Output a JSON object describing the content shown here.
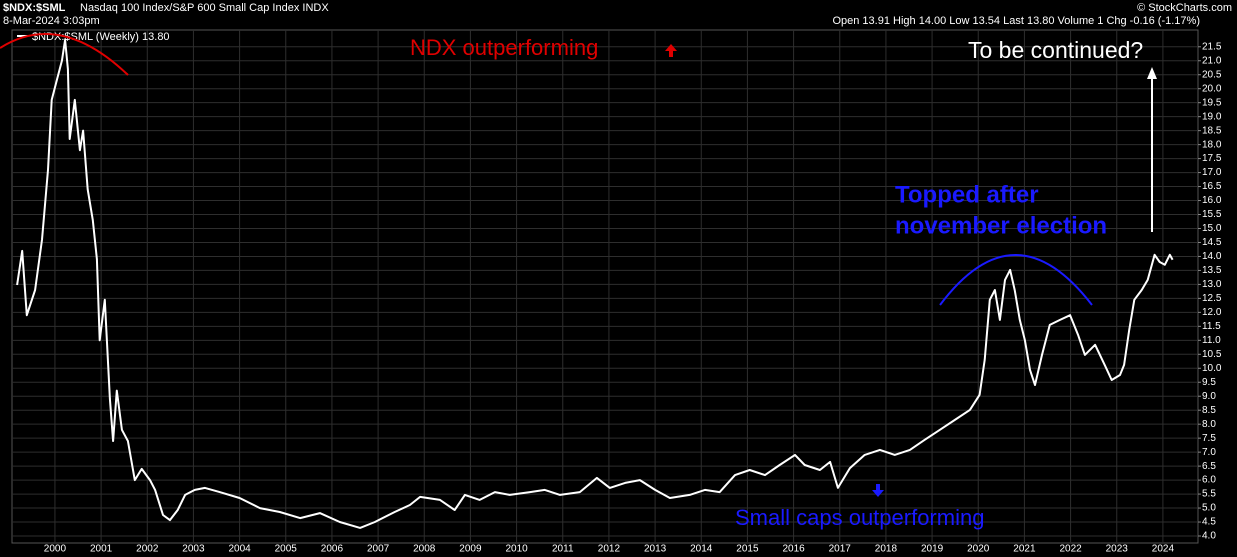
{
  "chart_data": {
    "type": "line",
    "title": "$NDX:$SML",
    "subtitle": "Nasdaq 100 Index/S&P 600 Small Cap Index INDX",
    "date": "8-Mar-2024 3:03pm",
    "quote": "Open 13.91  High 14.00  Low 13.54  Last 13.80  Volume 1  Chg -0.16 (-1.17%)",
    "source": "© StockCharts.com",
    "annotations": [
      {
        "text": "NDX outperforming",
        "color": "#e00000"
      },
      {
        "text": "Small caps outperforming",
        "color": "#1a1aff"
      },
      {
        "text": "Topped after",
        "color": "#1a1aff"
      },
      {
        "text": "november election",
        "color": "#1a1aff"
      },
      {
        "text": "To be continued?",
        "color": "#ffffff"
      }
    ],
    "xlim": [
      1999.07,
      2024.76
    ],
    "xticks": [
      2000,
      2001,
      2002,
      2003,
      2004,
      2005,
      2006,
      2007,
      2008,
      2009,
      2010,
      2011,
      2012,
      2013,
      2014,
      2015,
      2016,
      2017,
      2018,
      2019,
      2020,
      2021,
      2022,
      2023,
      2024
    ],
    "ylim": [
      3.75,
      22.1
    ],
    "yticks": [
      {
        "value": 4,
        "label": "4.0"
      },
      4.5,
      {
        "value": 5,
        "label": "5.0"
      },
      5.5,
      {
        "value": 6,
        "label": "6.0"
      },
      6.5,
      {
        "value": 7,
        "label": "7.0"
      },
      7.5,
      {
        "value": 8,
        "label": "8.0"
      },
      8.5,
      {
        "value": 9,
        "label": "9.0"
      },
      9.5,
      {
        "value": 10,
        "label": "10.0"
      },
      10.5,
      {
        "value": 11,
        "label": "11.0"
      },
      11.5,
      {
        "value": 12,
        "label": "12.0"
      },
      12.5,
      {
        "value": 13,
        "label": "13.0"
      },
      13.5,
      {
        "value": 14,
        "label": "14.0"
      },
      14.5,
      {
        "value": 15,
        "label": "15.0"
      },
      15.5,
      {
        "value": 16,
        "label": "16.0"
      },
      16.5,
      {
        "value": 17,
        "label": "17.0"
      },
      17.5,
      {
        "value": 18,
        "label": "18.0"
      },
      18.5,
      {
        "value": 19,
        "label": "19.0"
      },
      19.5,
      {
        "value": 20,
        "label": "20.0"
      },
      20.5,
      {
        "value": 21,
        "label": "21.0"
      },
      21.5
    ],
    "grid": true,
    "series": [
      {
        "name": "$NDX:$SML (Weekly) 13.80",
        "color": "#ffffff",
        "x": [
          1999.18,
          1999.29,
          1999.39,
          1999.57,
          1999.72,
          1999.85,
          1999.93,
          2000.04,
          2000.15,
          2000.22,
          2000.28,
          2000.32,
          2000.43,
          2000.54,
          2000.61,
          2000.71,
          2000.82,
          2000.91,
          2000.97,
          2001.08,
          2001.19,
          2001.26,
          2001.34,
          2001.45,
          2001.58,
          2001.73,
          2001.88,
          2002.06,
          2002.17,
          2002.34,
          2002.49,
          2002.66,
          2002.82,
          2003.03,
          2003.25,
          2003.57,
          2004.0,
          2004.44,
          2004.87,
          2005.31,
          2005.74,
          2006.17,
          2006.61,
          2006.93,
          2007.36,
          2007.69,
          2007.91,
          2008.34,
          2008.66,
          2008.88,
          2009.2,
          2009.53,
          2009.85,
          2010.29,
          2010.61,
          2010.94,
          2011.37,
          2011.74,
          2012.02,
          2012.35,
          2012.67,
          2013.0,
          2013.32,
          2013.75,
          2014.08,
          2014.4,
          2014.73,
          2015.05,
          2015.38,
          2015.7,
          2016.03,
          2016.24,
          2016.57,
          2016.79,
          2016.96,
          2017.22,
          2017.54,
          2017.87,
          2018.19,
          2018.52,
          2018.84,
          2019.17,
          2019.49,
          2019.82,
          2020.03,
          2020.14,
          2020.25,
          2020.36,
          2020.47,
          2020.58,
          2020.69,
          2020.79,
          2020.9,
          2021.01,
          2021.12,
          2021.23,
          2021.38,
          2021.55,
          2021.77,
          2021.99,
          2022.16,
          2022.31,
          2022.53,
          2022.74,
          2022.89,
          2023.07,
          2023.16,
          2023.27,
          2023.38,
          2023.54,
          2023.67,
          2023.82,
          2023.93,
          2024.04,
          2024.15,
          2024.21
        ],
        "values": [
          12.98,
          14.2,
          11.9,
          12.8,
          14.6,
          17.1,
          19.6,
          20.3,
          21.0,
          21.75,
          20.7,
          18.2,
          19.6,
          17.8,
          18.5,
          16.4,
          15.3,
          13.9,
          11.0,
          12.45,
          8.9,
          7.4,
          9.2,
          7.8,
          7.4,
          6.0,
          6.4,
          6.0,
          5.65,
          4.75,
          4.57,
          4.93,
          5.47,
          5.65,
          5.72,
          5.57,
          5.36,
          5.0,
          4.86,
          4.64,
          4.82,
          4.5,
          4.29,
          4.5,
          4.86,
          5.11,
          5.4,
          5.29,
          4.93,
          5.47,
          5.29,
          5.57,
          5.47,
          5.57,
          5.65,
          5.47,
          5.57,
          6.08,
          5.72,
          5.9,
          6.0,
          5.65,
          5.36,
          5.47,
          5.65,
          5.57,
          6.18,
          6.36,
          6.18,
          6.54,
          6.9,
          6.54,
          6.36,
          6.65,
          5.72,
          6.43,
          6.9,
          7.08,
          6.9,
          7.08,
          7.44,
          7.8,
          8.15,
          8.51,
          9.05,
          10.3,
          12.45,
          12.8,
          11.73,
          13.16,
          13.52,
          12.8,
          11.73,
          11.0,
          9.94,
          9.4,
          10.48,
          11.55,
          11.73,
          11.9,
          11.2,
          10.48,
          10.84,
          10.12,
          9.58,
          9.76,
          10.12,
          11.37,
          12.45,
          12.8,
          13.16,
          14.06,
          13.8,
          13.7,
          14.06,
          13.88
        ]
      }
    ]
  }
}
